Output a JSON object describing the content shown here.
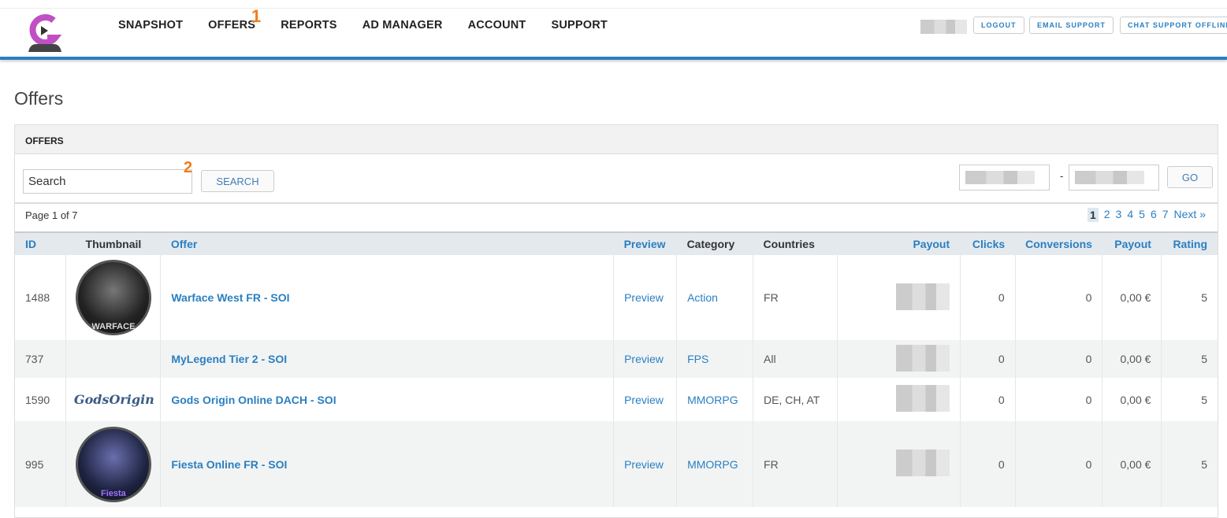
{
  "nav": {
    "items": [
      "SNAPSHOT",
      "OFFERS",
      "REPORTS",
      "AD MANAGER",
      "ACCOUNT",
      "SUPPORT"
    ]
  },
  "header_buttons": {
    "logout": "LOGOUT",
    "email": "EMAIL SUPPORT",
    "chat": "CHAT SUPPORT OFFLINE"
  },
  "markers": [
    "1",
    "2"
  ],
  "page_title": "Offers",
  "panel": {
    "title": "OFFERS",
    "search_value": "Search",
    "search_button": "SEARCH",
    "go_button": "GO",
    "date_separator": "-"
  },
  "pagination": {
    "summary": "Page 1 of 7",
    "pages": [
      "1",
      "2",
      "3",
      "4",
      "5",
      "6",
      "7"
    ],
    "current": "1",
    "next": "Next »"
  },
  "table": {
    "columns": [
      "ID",
      "Thumbnail",
      "Offer",
      "Preview",
      "Category",
      "Countries",
      "Payout",
      "Clicks",
      "Conversions",
      "Payout",
      "Rating"
    ],
    "rows": [
      {
        "id": "1488",
        "thumb": "warface",
        "thumb_text": "WARFACE",
        "offer": "Warface West FR - SOI",
        "preview": "Preview",
        "category": "Action",
        "countries": "FR",
        "clicks": "0",
        "conversions": "0",
        "payout": "0,00 €",
        "rating": "5"
      },
      {
        "id": "737",
        "thumb": "",
        "thumb_text": "",
        "offer": "MyLegend Tier 2 - SOI",
        "preview": "Preview",
        "category": "FPS",
        "countries": "All",
        "clicks": "0",
        "conversions": "0",
        "payout": "0,00 €",
        "rating": "5"
      },
      {
        "id": "1590",
        "thumb": "godsorigin",
        "thumb_text": "GodsOrigin",
        "offer": "Gods Origin Online DACH - SOI",
        "preview": "Preview",
        "category": "MMORPG",
        "countries": "DE, CH, AT",
        "clicks": "0",
        "conversions": "0",
        "payout": "0,00 €",
        "rating": "5"
      },
      {
        "id": "995",
        "thumb": "fiesta",
        "thumb_text": "Fiesta",
        "offer": "Fiesta Online FR - SOI",
        "preview": "Preview",
        "category": "MMORPG",
        "countries": "FR",
        "clicks": "0",
        "conversions": "0",
        "payout": "0,00 €",
        "rating": "5"
      }
    ]
  },
  "colors": {
    "accent": "#2a7fc1",
    "marker": "#f07c1a",
    "logo": "#c04fc4"
  }
}
